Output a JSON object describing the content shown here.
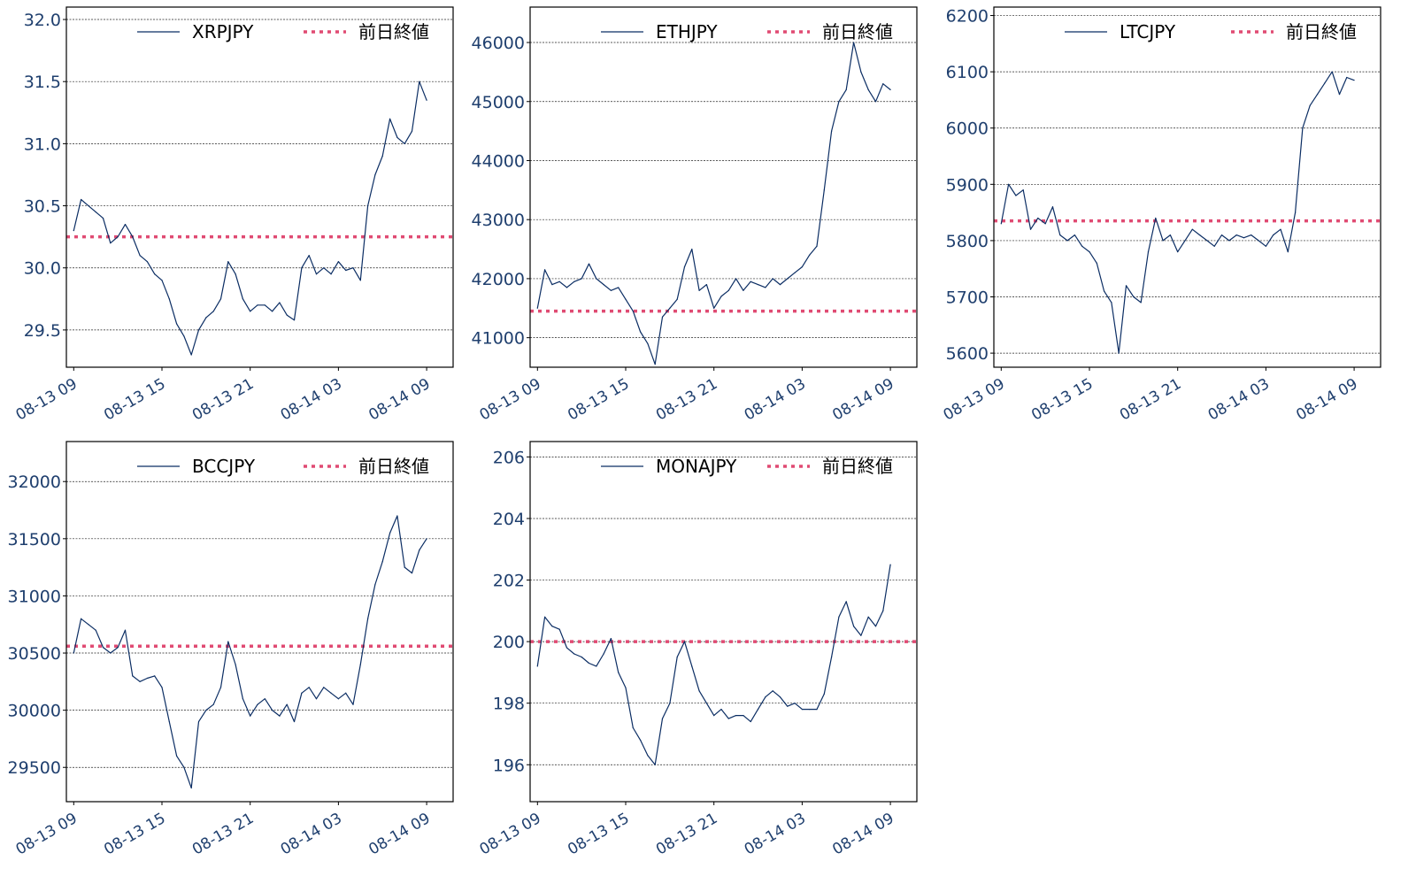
{
  "chart_data": [
    {
      "type": "line",
      "x_ticks": [
        "08-13 09",
        "08-13 15",
        "08-13 21",
        "08-14 03",
        "08-14 09"
      ],
      "ylim": [
        29.2,
        32.1
      ],
      "y_ticks": [
        29.5,
        30.0,
        30.5,
        31.0,
        31.5,
        32.0
      ],
      "y_tick_labels": [
        "29.5",
        "30.0",
        "30.5",
        "31.0",
        "31.5",
        "32.0"
      ],
      "grid": true,
      "legend_position": "top-right",
      "series": [
        {
          "name": "XRPJPY",
          "style": "solid",
          "x_hours": [
            0,
            0.5,
            1,
            1.5,
            2,
            2.5,
            3,
            3.5,
            4,
            4.5,
            5,
            5.5,
            6,
            6.5,
            7,
            7.5,
            8,
            8.5,
            9,
            9.5,
            10,
            10.5,
            11,
            11.5,
            12,
            12.5,
            13,
            13.5,
            14,
            14.5,
            15,
            15.5,
            16,
            16.5,
            17,
            17.5,
            18,
            18.5,
            19,
            19.5,
            20,
            20.5,
            21,
            21.5,
            22,
            22.5,
            23,
            23.5,
            24
          ],
          "values": [
            30.3,
            30.55,
            30.5,
            30.45,
            30.4,
            30.2,
            30.25,
            30.35,
            30.25,
            30.1,
            30.05,
            29.95,
            29.9,
            29.75,
            29.55,
            29.45,
            29.3,
            29.5,
            29.6,
            29.65,
            29.75,
            30.05,
            29.95,
            29.75,
            29.65,
            29.7,
            29.7,
            29.65,
            29.72,
            29.62,
            29.58,
            30.0,
            30.1,
            29.95,
            30.0,
            29.95,
            30.05,
            29.98,
            30.0,
            29.9,
            30.5,
            30.75,
            30.9,
            31.2,
            31.05,
            31.0,
            31.1,
            31.5,
            31.35
          ]
        },
        {
          "name": "前日終値",
          "style": "dotted",
          "level": 30.25
        }
      ]
    },
    {
      "type": "line",
      "x_ticks": [
        "08-13 09",
        "08-13 15",
        "08-13 21",
        "08-14 03",
        "08-14 09"
      ],
      "ylim": [
        40500,
        46600
      ],
      "y_ticks": [
        41000,
        42000,
        43000,
        44000,
        45000,
        46000
      ],
      "y_tick_labels": [
        "41000",
        "42000",
        "43000",
        "44000",
        "45000",
        "46000"
      ],
      "grid": true,
      "legend_position": "top-right",
      "series": [
        {
          "name": "ETHJPY",
          "style": "solid",
          "x_hours": [
            0,
            0.5,
            1,
            1.5,
            2,
            2.5,
            3,
            3.5,
            4,
            4.5,
            5,
            5.5,
            6,
            6.5,
            7,
            7.5,
            8,
            8.5,
            9,
            9.5,
            10,
            10.5,
            11,
            11.5,
            12,
            12.5,
            13,
            13.5,
            14,
            14.5,
            15,
            15.5,
            16,
            16.5,
            17,
            17.5,
            18,
            18.5,
            19,
            19.5,
            20,
            20.5,
            21,
            21.5,
            22,
            22.5,
            23,
            23.5,
            24
          ],
          "values": [
            41500,
            42150,
            41900,
            41950,
            41850,
            41950,
            42000,
            42250,
            42000,
            41900,
            41800,
            41850,
            41650,
            41450,
            41100,
            40900,
            40550,
            41350,
            41500,
            41650,
            42200,
            42500,
            41800,
            41900,
            41500,
            41700,
            41800,
            42000,
            41800,
            41950,
            41900,
            41850,
            42000,
            41900,
            42000,
            42100,
            42200,
            42400,
            42550,
            43500,
            44500,
            45000,
            45200,
            46000,
            45500,
            45200,
            45000,
            45300,
            45200
          ]
        },
        {
          "name": "前日終値",
          "style": "dotted",
          "level": 41450
        }
      ]
    },
    {
      "type": "line",
      "x_ticks": [
        "08-13 09",
        "08-13 15",
        "08-13 21",
        "08-14 03",
        "08-14 09"
      ],
      "ylim": [
        5575,
        6215
      ],
      "y_ticks": [
        5600,
        5700,
        5800,
        5900,
        6000,
        6100,
        6200
      ],
      "y_tick_labels": [
        "5600",
        "5700",
        "5800",
        "5900",
        "6000",
        "6100",
        "6200"
      ],
      "grid": true,
      "legend_position": "top-right",
      "series": [
        {
          "name": "LTCJPY",
          "style": "solid",
          "x_hours": [
            0,
            0.5,
            1,
            1.5,
            2,
            2.5,
            3,
            3.5,
            4,
            4.5,
            5,
            5.5,
            6,
            6.5,
            7,
            7.5,
            8,
            8.5,
            9,
            9.5,
            10,
            10.5,
            11,
            11.5,
            12,
            12.5,
            13,
            13.5,
            14,
            14.5,
            15,
            15.5,
            16,
            16.5,
            17,
            17.5,
            18,
            18.5,
            19,
            19.5,
            20,
            20.5,
            21,
            21.5,
            22,
            22.5,
            23,
            23.5,
            24
          ],
          "values": [
            5830,
            5900,
            5880,
            5890,
            5820,
            5840,
            5830,
            5860,
            5810,
            5800,
            5810,
            5790,
            5780,
            5760,
            5710,
            5690,
            5600,
            5720,
            5700,
            5690,
            5780,
            5840,
            5800,
            5810,
            5780,
            5800,
            5820,
            5810,
            5800,
            5790,
            5810,
            5800,
            5810,
            5805,
            5810,
            5800,
            5790,
            5810,
            5820,
            5780,
            5850,
            6000,
            6040,
            6060,
            6080,
            6100,
            6060,
            6090,
            6085
          ]
        },
        {
          "name": "前日終値",
          "style": "dotted",
          "level": 5835
        }
      ]
    },
    {
      "type": "line",
      "x_ticks": [
        "08-13 09",
        "08-13 15",
        "08-13 21",
        "08-14 03",
        "08-14 09"
      ],
      "ylim": [
        29200,
        32350
      ],
      "y_ticks": [
        29500,
        30000,
        30500,
        31000,
        31500,
        32000
      ],
      "y_tick_labels": [
        "29500",
        "30000",
        "30500",
        "31000",
        "31500",
        "32000"
      ],
      "grid": true,
      "legend_position": "top-right",
      "series": [
        {
          "name": "BCCJPY",
          "style": "solid",
          "x_hours": [
            0,
            0.5,
            1,
            1.5,
            2,
            2.5,
            3,
            3.5,
            4,
            4.5,
            5,
            5.5,
            6,
            6.5,
            7,
            7.5,
            8,
            8.5,
            9,
            9.5,
            10,
            10.5,
            11,
            11.5,
            12,
            12.5,
            13,
            13.5,
            14,
            14.5,
            15,
            15.5,
            16,
            16.5,
            17,
            17.5,
            18,
            18.5,
            19,
            19.5,
            20,
            20.5,
            21,
            21.5,
            22,
            22.5,
            23,
            23.5,
            24
          ],
          "values": [
            30500,
            30800,
            30750,
            30700,
            30550,
            30500,
            30550,
            30700,
            30300,
            30250,
            30280,
            30300,
            30200,
            29900,
            29600,
            29500,
            29320,
            29900,
            30000,
            30050,
            30200,
            30600,
            30400,
            30100,
            29950,
            30050,
            30100,
            30000,
            29950,
            30050,
            29900,
            30150,
            30200,
            30100,
            30200,
            30150,
            30100,
            30150,
            30050,
            30400,
            30800,
            31100,
            31300,
            31550,
            31700,
            31250,
            31200,
            31400,
            31500
          ]
        },
        {
          "name": "前日終値",
          "style": "dotted",
          "level": 30560
        }
      ]
    },
    {
      "type": "line",
      "x_ticks": [
        "08-13 09",
        "08-13 15",
        "08-13 21",
        "08-14 03",
        "08-14 09"
      ],
      "ylim": [
        194.8,
        206.5
      ],
      "y_ticks": [
        196,
        198,
        200,
        202,
        204,
        206
      ],
      "y_tick_labels": [
        "196",
        "198",
        "200",
        "202",
        "204",
        "206"
      ],
      "grid": true,
      "legend_position": "top-right",
      "series": [
        {
          "name": "MONAJPY",
          "style": "solid",
          "x_hours": [
            0,
            0.5,
            1,
            1.5,
            2,
            2.5,
            3,
            3.5,
            4,
            4.5,
            5,
            5.5,
            6,
            6.5,
            7,
            7.5,
            8,
            8.5,
            9,
            9.5,
            10,
            10.5,
            11,
            11.5,
            12,
            12.5,
            13,
            13.5,
            14,
            14.5,
            15,
            15.5,
            16,
            16.5,
            17,
            17.5,
            18,
            18.5,
            19,
            19.5,
            20,
            20.5,
            21,
            21.5,
            22,
            22.5,
            23,
            23.5,
            24
          ],
          "values": [
            199.2,
            200.8,
            200.5,
            200.4,
            199.8,
            199.6,
            199.5,
            199.3,
            199.2,
            199.6,
            200.1,
            199.0,
            198.5,
            197.2,
            196.8,
            196.3,
            196.0,
            197.5,
            198.0,
            199.5,
            200.0,
            199.2,
            198.4,
            198.0,
            197.6,
            197.8,
            197.5,
            197.6,
            197.6,
            197.4,
            197.8,
            198.2,
            198.4,
            198.2,
            197.9,
            198.0,
            197.8,
            197.8,
            197.8,
            198.3,
            199.5,
            200.8,
            201.3,
            200.5,
            200.2,
            200.8,
            200.5,
            201.0,
            202.5
          ]
        },
        {
          "name": "前日終値",
          "style": "dotted",
          "level": 200.0
        }
      ]
    }
  ]
}
